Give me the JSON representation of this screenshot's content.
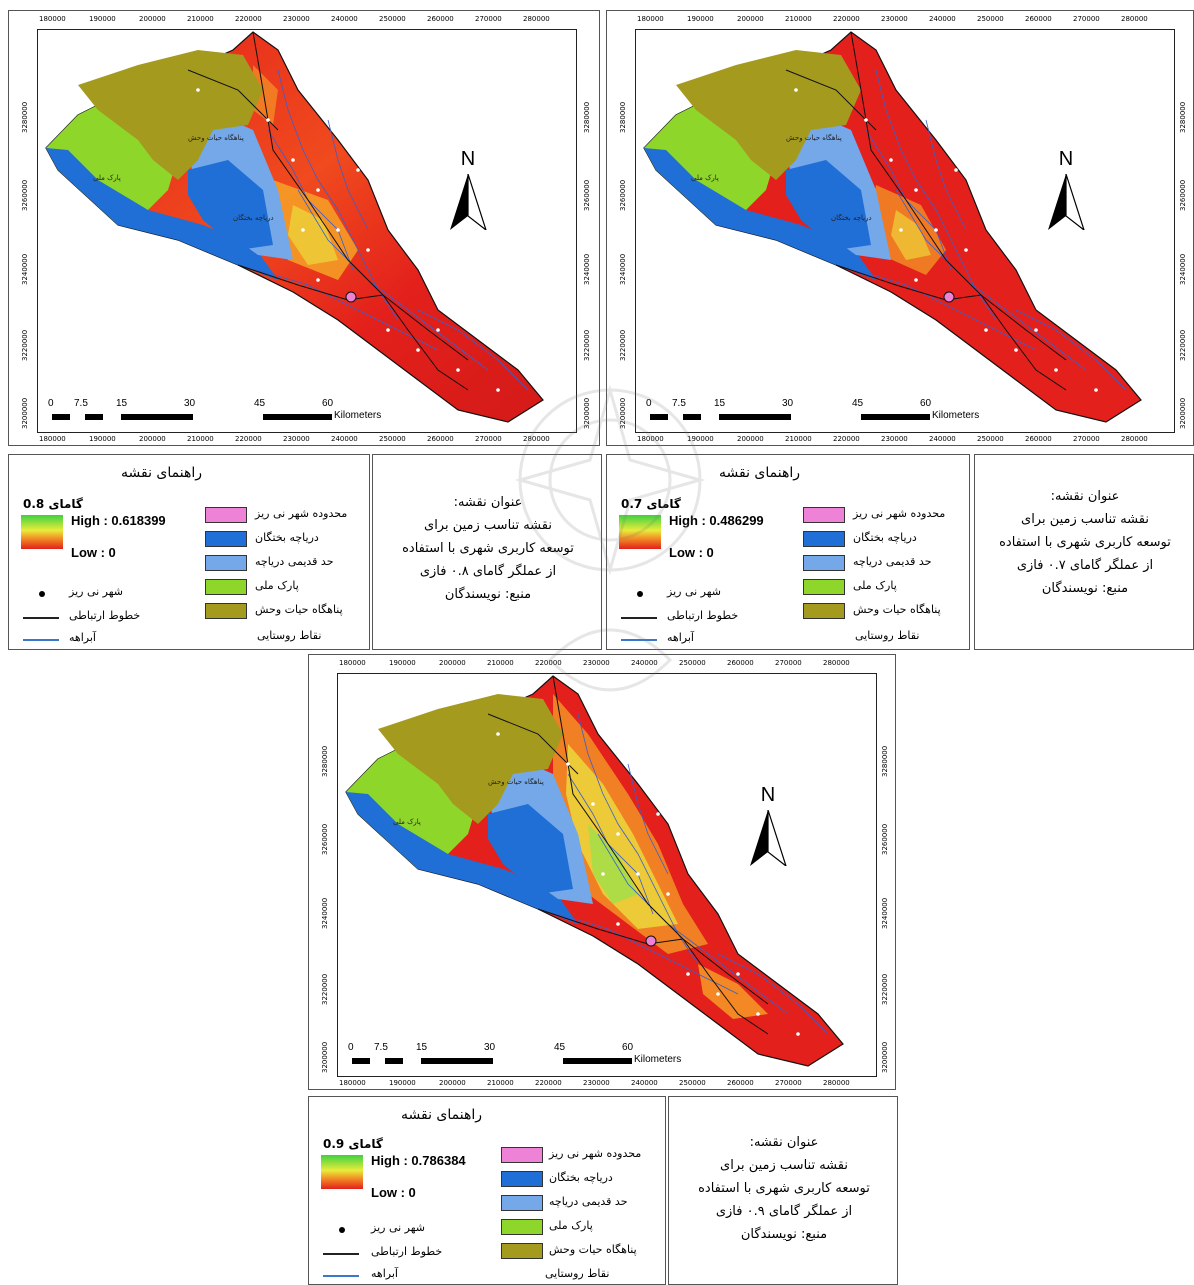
{
  "maps": [
    {
      "id": "gamma-0.8",
      "x_ticks": [
        "180000",
        "190000",
        "200000",
        "210000",
        "220000",
        "230000",
        "240000",
        "250000",
        "260000",
        "270000",
        "280000"
      ],
      "y_ticks": [
        "3280000",
        "3260000",
        "3240000",
        "3220000",
        "3200000"
      ],
      "north_label": "N",
      "scale_labels": [
        "0",
        "7.5",
        "15",
        "30",
        "45",
        "60"
      ],
      "scale_unit": "Kilometers",
      "place_labels": [
        "پناهگاه حیات وحش",
        "پارک ملی",
        "دریاچه بختگان"
      ],
      "legend": {
        "title": "راهنمای نقشه",
        "gamma_label": "گامای 0.8",
        "high": "High : 0.618399",
        "low": "Low : 0",
        "items_right": [
          "محدوده شهر نی ریز",
          "دریاچه بختگان",
          "حد قدیمی دریاچه",
          "پارک ملی",
          "پناهگاه حیات وحش",
          "نقاط روستایی"
        ],
        "items_left": [
          "شهر نی ریز",
          "خطوط ارتباطی",
          "آبراهه"
        ]
      },
      "title_box": [
        "عنوان نقشه:",
        "نقشه تناسب زمین برای",
        "توسعه کاربری شهری با استفاده",
        "از عملگر گامای ۰.۸ فازی",
        "منبع: نویسندگان"
      ]
    },
    {
      "id": "gamma-0.7",
      "x_ticks": [
        "180000",
        "190000",
        "200000",
        "210000",
        "220000",
        "230000",
        "240000",
        "250000",
        "260000",
        "270000",
        "280000"
      ],
      "y_ticks": [
        "3280000",
        "3260000",
        "3240000",
        "3220000",
        "3200000"
      ],
      "north_label": "N",
      "scale_labels": [
        "0",
        "7.5",
        "15",
        "30",
        "45",
        "60"
      ],
      "scale_unit": "Kilometers",
      "place_labels": [
        "پناهگاه حیات وحش",
        "پارک ملی",
        "دریاچه بختگان"
      ],
      "legend": {
        "title": "راهنمای نقشه",
        "gamma_label": "گامای 0.7",
        "high": "High : 0.486299",
        "low": "Low : 0",
        "items_right": [
          "محدوده شهر نی ریز",
          "دریاچه بختگان",
          "حد قدیمی دریاچه",
          "پارک ملی",
          "پناهگاه حیات وحش",
          "نقاط روستایی"
        ],
        "items_left": [
          "شهر نی ریز",
          "خطوط ارتباطی",
          "آبراهه"
        ]
      },
      "title_box": [
        "عنوان نقشه:",
        "نقشه تناسب زمین برای",
        "توسعه کاربری شهری با استفاده",
        "از عملگر گامای ۰.۷ فازی",
        "منبع: نویسندگان"
      ]
    },
    {
      "id": "gamma-0.9",
      "x_ticks": [
        "180000",
        "190000",
        "200000",
        "210000",
        "220000",
        "230000",
        "240000",
        "250000",
        "260000",
        "270000",
        "280000"
      ],
      "y_ticks": [
        "3280000",
        "3260000",
        "3240000",
        "3220000",
        "3200000"
      ],
      "north_label": "N",
      "scale_labels": [
        "0",
        "7.5",
        "15",
        "30",
        "45",
        "60"
      ],
      "scale_unit": "Kilometers",
      "place_labels": [
        "پناهگاه حیات وحش",
        "پارک ملی"
      ],
      "legend": {
        "title": "راهنمای نقشه",
        "gamma_label": "گامای 0.9",
        "high": "High : 0.786384",
        "low": "Low : 0",
        "items_right": [
          "محدوده شهر نی ریز",
          "دریاچه بختگان",
          "حد قدیمی دریاچه",
          "پارک ملی",
          "پناهگاه حیات وحش",
          "نقاط روستایی"
        ],
        "items_left": [
          "شهر نی ریز",
          "خطوط ارتباطی",
          "آبراهه"
        ]
      },
      "title_box": [
        "عنوان نقشه:",
        "نقشه تناسب زمین برای",
        "توسعه کاربری شهری با استفاده",
        "از عملگر گامای ۰.۹ فازی",
        "منبع: نویسندگان"
      ]
    }
  ],
  "colors": {
    "city_boundary": "#ee82d6",
    "lake": "#1f6fd6",
    "old_lake": "#74a8e8",
    "national_park": "#8fd62a",
    "wildlife_refuge": "#a49a1e",
    "suitability_high": "#3fd13f",
    "suitability_mid": "#e9ec3b",
    "suitability_low": "#e3201b",
    "streams": "#3a5fd0",
    "roads": "#222222"
  }
}
